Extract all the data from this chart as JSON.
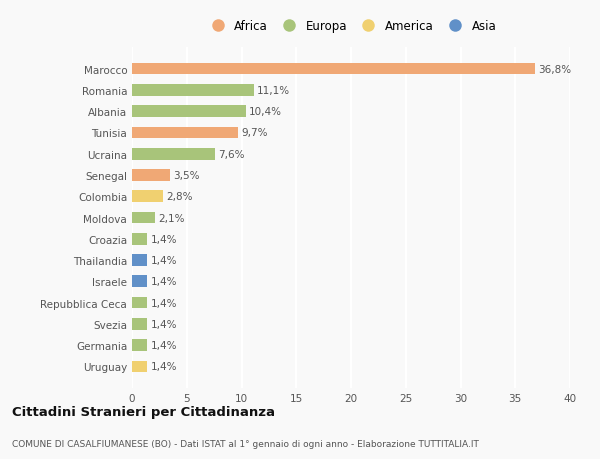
{
  "countries": [
    "Marocco",
    "Romania",
    "Albania",
    "Tunisia",
    "Ucraina",
    "Senegal",
    "Colombia",
    "Moldova",
    "Croazia",
    "Thailandia",
    "Israele",
    "Repubblica Ceca",
    "Svezia",
    "Germania",
    "Uruguay"
  ],
  "values": [
    36.8,
    11.1,
    10.4,
    9.7,
    7.6,
    3.5,
    2.8,
    2.1,
    1.4,
    1.4,
    1.4,
    1.4,
    1.4,
    1.4,
    1.4
  ],
  "labels": [
    "36,8%",
    "11,1%",
    "10,4%",
    "9,7%",
    "7,6%",
    "3,5%",
    "2,8%",
    "2,1%",
    "1,4%",
    "1,4%",
    "1,4%",
    "1,4%",
    "1,4%",
    "1,4%",
    "1,4%"
  ],
  "continents": [
    "Africa",
    "Europa",
    "Europa",
    "Africa",
    "Europa",
    "Africa",
    "America",
    "Europa",
    "Europa",
    "Asia",
    "Asia",
    "Europa",
    "Europa",
    "Europa",
    "America"
  ],
  "continent_colors": {
    "Africa": "#F0A875",
    "Europa": "#A8C47A",
    "America": "#F0D070",
    "Asia": "#6090C8"
  },
  "legend_order": [
    "Africa",
    "Europa",
    "America",
    "Asia"
  ],
  "xlim": [
    0,
    40
  ],
  "xticks": [
    0,
    5,
    10,
    15,
    20,
    25,
    30,
    35,
    40
  ],
  "title": "Cittadini Stranieri per Cittadinanza",
  "subtitle": "COMUNE DI CASALFIUMANESE (BO) - Dati ISTAT al 1° gennaio di ogni anno - Elaborazione TUTTITALIA.IT",
  "background_color": "#f9f9f9",
  "bar_height": 0.55,
  "label_fontsize": 7.5,
  "tick_fontsize": 7.5,
  "grid_color": "#e8e8e8"
}
